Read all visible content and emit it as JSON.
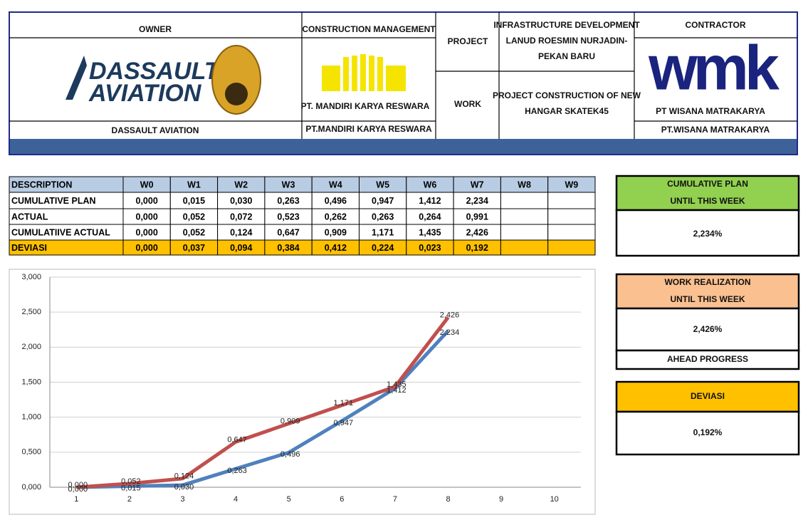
{
  "header": {
    "owner": {
      "label": "OWNER",
      "logo_text": [
        "DASSAULT",
        "AVIATION"
      ],
      "name": "DASSAULT AVIATION"
    },
    "cm": {
      "label": "CONSTRUCTION MANAGEMENT",
      "logo_text": "PT. MANDIRI KARYA RESWARA",
      "name": "PT.MANDIRI KARYA RESWARA"
    },
    "project": {
      "label": "PROJECT",
      "value": [
        "INFRASTRUCTURE DEVELOPMENT",
        "LANUD ROESMIN NURJADIN-",
        "PEKAN BARU"
      ]
    },
    "work": {
      "label": "WORK",
      "value": [
        "PROJECT CONSTRUCTION OF NEW",
        "HANGAR SKATEK45"
      ]
    },
    "contractor": {
      "label": "CONTRACTOR",
      "logo_text": "wmk",
      "logo_sub": "PT WISANA MATRAKARYA",
      "name": "PT.WISANA MATRAKARYA"
    }
  },
  "table": {
    "header": [
      "DESCRIPTION",
      "W0",
      "W1",
      "W2",
      "W3",
      "W4",
      "W5",
      "W6",
      "W7",
      "W8",
      "W9"
    ],
    "rows": [
      {
        "label": "CUMULATIVE PLAN",
        "cells": [
          "0,000",
          "0,015",
          "0,030",
          "0,263",
          "0,496",
          "0,947",
          "1,412",
          "2,234"
        ]
      },
      {
        "label": "ACTUAL",
        "cells": [
          "0,000",
          "0,052",
          "0,072",
          "0,523",
          "0,262",
          "0,263",
          "0,264",
          "0,991"
        ]
      },
      {
        "label": "CUMULATIIVE ACTUAL",
        "cells": [
          "0,000",
          "0,052",
          "0,124",
          "0,647",
          "0,909",
          "1,171",
          "1,435",
          "2,426"
        ]
      },
      {
        "label": "DEVIASI",
        "cells": [
          "0,000",
          "0,037",
          "0,094",
          "0,384",
          "0,412",
          "0,224",
          "0,023",
          "0,192"
        ]
      }
    ]
  },
  "cards": [
    {
      "title": [
        "CUMULATIVE PLAN",
        "UNTIL THIS WEEK"
      ],
      "value": "2,234%"
    },
    {
      "title": [
        "WORK REALIZATION",
        "UNTIL THIS WEEK"
      ],
      "value": "2,426%",
      "note": "AHEAD PROGRESS"
    },
    {
      "title": [
        "DEVIASI"
      ],
      "value": "0,192%"
    }
  ],
  "chart_data": {
    "type": "line",
    "categories": [
      "1",
      "2",
      "3",
      "4",
      "5",
      "6",
      "7",
      "8",
      "9",
      "10"
    ],
    "series": [
      {
        "name": "CUMULATIVE PLAN",
        "color": "#4f81bd",
        "values": [
          0,
          0.015,
          0.03,
          0.263,
          0.496,
          0.947,
          1.412,
          2.234,
          null,
          null
        ],
        "value_labels": [
          "0,000",
          "0,015",
          "0,030",
          "0,263",
          "0,496",
          "0,947",
          "1,412",
          "2,234",
          null,
          null
        ]
      },
      {
        "name": "CUMULATIIVE ACTUAL",
        "color": "#c0504d",
        "values": [
          0,
          0.052,
          0.124,
          0.647,
          0.909,
          1.171,
          1.435,
          2.426,
          null,
          null
        ],
        "value_labels": [
          "0,000",
          "0,052",
          "0,124",
          "0,647",
          "0,909",
          "1,171",
          "1,435",
          "2,426",
          null,
          null
        ]
      }
    ],
    "ylim": [
      0,
      3
    ],
    "yticks": [
      {
        "value": 0,
        "label": "0,000"
      },
      {
        "value": 0.5,
        "label": "0,500"
      },
      {
        "value": 1,
        "label": "1,000"
      },
      {
        "value": 1.5,
        "label": "1,500"
      },
      {
        "value": 2,
        "label": "2,000"
      },
      {
        "value": 2.5,
        "label": "2,500"
      },
      {
        "value": 3,
        "label": "3,000"
      }
    ],
    "grid": true
  }
}
